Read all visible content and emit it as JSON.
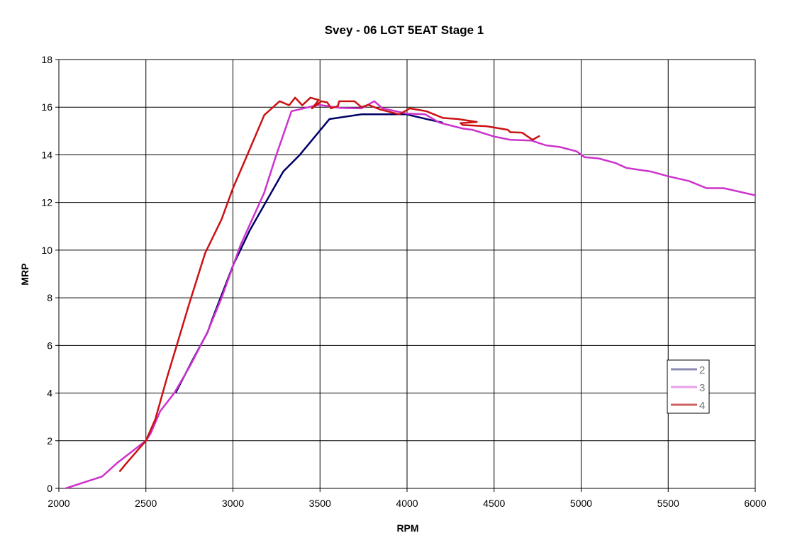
{
  "chart_data": {
    "type": "line",
    "title": "Svey - 06 LGT 5EAT Stage 1",
    "xlabel": "RPM",
    "ylabel": "MRP",
    "xlim": [
      2000,
      6000
    ],
    "ylim": [
      0,
      18
    ],
    "xticks": [
      2000,
      2500,
      3000,
      3500,
      4000,
      4500,
      5000,
      5500,
      6000
    ],
    "yticks": [
      0,
      2,
      4,
      6,
      8,
      10,
      12,
      14,
      16,
      18
    ],
    "grid": true,
    "legend_position": "right",
    "series": [
      {
        "name": "2",
        "color": "#000066",
        "legend_color": "#8c8cb4",
        "points": [
          [
            2670,
            4.0
          ],
          [
            2772,
            5.44
          ],
          [
            2854,
            6.55
          ],
          [
            2881,
            7.1
          ],
          [
            3003,
            9.4
          ],
          [
            3098,
            10.85
          ],
          [
            3289,
            13.3
          ],
          [
            3384,
            14.0
          ],
          [
            3554,
            15.5
          ],
          [
            3738,
            15.7
          ],
          [
            3996,
            15.7
          ],
          [
            4131,
            15.47
          ],
          [
            4206,
            15.35
          ]
        ]
      },
      {
        "name": "3",
        "color": "#cc33cc",
        "legend_color": "#e8a0e8",
        "points": [
          [
            2039,
            0
          ],
          [
            2249,
            0.5
          ],
          [
            2337,
            1.08
          ],
          [
            2500,
            2.0
          ],
          [
            2527,
            2.3
          ],
          [
            2582,
            3.24
          ],
          [
            2663,
            4.0
          ],
          [
            2758,
            5.2
          ],
          [
            2853,
            6.55
          ],
          [
            2935,
            8.0
          ],
          [
            3043,
            10.2
          ],
          [
            3111,
            11.3
          ],
          [
            3179,
            12.4
          ],
          [
            3247,
            13.95
          ],
          [
            3336,
            15.83
          ],
          [
            3492,
            16.1
          ],
          [
            3617,
            15.97
          ],
          [
            3738,
            15.95
          ],
          [
            3812,
            16.25
          ],
          [
            3860,
            15.95
          ],
          [
            4000,
            15.73
          ],
          [
            4104,
            15.7
          ],
          [
            4186,
            15.35
          ],
          [
            4322,
            15.1
          ],
          [
            4377,
            15.05
          ],
          [
            4499,
            14.77
          ],
          [
            4593,
            14.63
          ],
          [
            4715,
            14.6
          ],
          [
            4797,
            14.4
          ],
          [
            4878,
            14.33
          ],
          [
            4973,
            14.15
          ],
          [
            5020,
            13.9
          ],
          [
            5100,
            13.85
          ],
          [
            5200,
            13.65
          ],
          [
            5260,
            13.45
          ],
          [
            5400,
            13.3
          ],
          [
            5500,
            13.1
          ],
          [
            5620,
            12.9
          ],
          [
            5720,
            12.6
          ],
          [
            5820,
            12.6
          ],
          [
            6000,
            12.3
          ]
        ]
      },
      {
        "name": "4",
        "color": "#cc1111",
        "legend_color": "#d06060",
        "points": [
          [
            2348,
            0.7
          ],
          [
            2391,
            1.08
          ],
          [
            2500,
            2.0
          ],
          [
            2554,
            2.9
          ],
          [
            2622,
            4.67
          ],
          [
            2677,
            6.0
          ],
          [
            2745,
            7.66
          ],
          [
            2840,
            9.87
          ],
          [
            2935,
            11.3
          ],
          [
            3000,
            12.6
          ],
          [
            3071,
            13.8
          ],
          [
            3180,
            15.67
          ],
          [
            3268,
            16.25
          ],
          [
            3323,
            16.08
          ],
          [
            3357,
            16.4
          ],
          [
            3398,
            16.08
          ],
          [
            3445,
            16.4
          ],
          [
            3493,
            16.3
          ],
          [
            3454,
            15.95
          ],
          [
            3508,
            16.25
          ],
          [
            3542,
            16.2
          ],
          [
            3563,
            15.95
          ],
          [
            3603,
            16.05
          ],
          [
            3610,
            16.25
          ],
          [
            3698,
            16.25
          ],
          [
            3738,
            16.0
          ],
          [
            3779,
            16.1
          ],
          [
            3847,
            15.9
          ],
          [
            3955,
            15.7
          ],
          [
            4016,
            15.95
          ],
          [
            4111,
            15.83
          ],
          [
            4206,
            15.55
          ],
          [
            4294,
            15.5
          ],
          [
            4401,
            15.38
          ],
          [
            4307,
            15.33
          ],
          [
            4321,
            15.25
          ],
          [
            4457,
            15.2
          ],
          [
            4579,
            15.05
          ],
          [
            4593,
            14.95
          ],
          [
            4661,
            14.93
          ],
          [
            4721,
            14.63
          ],
          [
            4762,
            14.8
          ]
        ]
      }
    ]
  }
}
